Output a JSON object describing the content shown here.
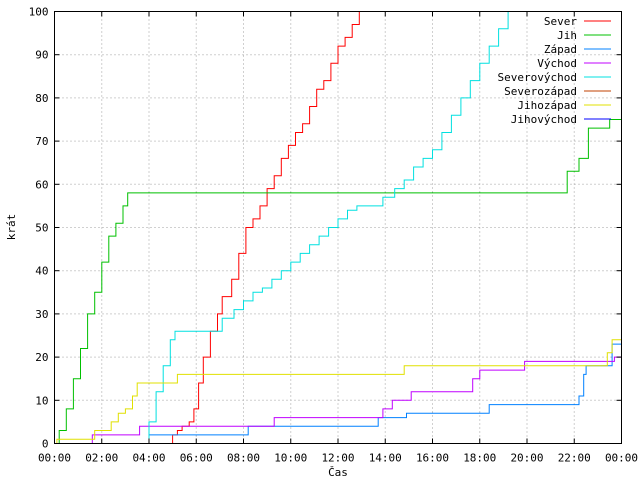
{
  "chart_data": {
    "type": "line",
    "title": "",
    "xlabel": "Čas",
    "ylabel": "krát",
    "xlim": [
      0,
      24
    ],
    "ylim": [
      0,
      100
    ],
    "x_ticks": [
      {
        "v": 0,
        "label": "00:00"
      },
      {
        "v": 2,
        "label": "02:00"
      },
      {
        "v": 4,
        "label": "04:00"
      },
      {
        "v": 6,
        "label": "06:00"
      },
      {
        "v": 8,
        "label": "08:00"
      },
      {
        "v": 10,
        "label": "10:00"
      },
      {
        "v": 12,
        "label": "12:00"
      },
      {
        "v": 14,
        "label": "14:00"
      },
      {
        "v": 16,
        "label": "16:00"
      },
      {
        "v": 18,
        "label": "18:00"
      },
      {
        "v": 20,
        "label": "20:00"
      },
      {
        "v": 22,
        "label": "22:00"
      },
      {
        "v": 24,
        "label": "00:00"
      }
    ],
    "y_ticks": [
      {
        "v": 0,
        "label": "0"
      },
      {
        "v": 10,
        "label": "10"
      },
      {
        "v": 20,
        "label": "20"
      },
      {
        "v": 30,
        "label": "30"
      },
      {
        "v": 40,
        "label": "40"
      },
      {
        "v": 50,
        "label": "50"
      },
      {
        "v": 60,
        "label": "60"
      },
      {
        "v": 70,
        "label": "70"
      },
      {
        "v": 80,
        "label": "80"
      },
      {
        "v": 90,
        "label": "90"
      },
      {
        "v": 100,
        "label": "100"
      }
    ],
    "grid": true,
    "legend_position": "top-right",
    "series": [
      {
        "name": "Sever",
        "color": "#ff0000",
        "points": [
          [
            0,
            0
          ],
          [
            4.9,
            0
          ],
          [
            5.0,
            2
          ],
          [
            5.2,
            3
          ],
          [
            5.4,
            4
          ],
          [
            5.7,
            5
          ],
          [
            5.9,
            8
          ],
          [
            6.1,
            14
          ],
          [
            6.3,
            20
          ],
          [
            6.6,
            26
          ],
          [
            6.9,
            30
          ],
          [
            7.1,
            34
          ],
          [
            7.5,
            38
          ],
          [
            7.8,
            44
          ],
          [
            8.1,
            50
          ],
          [
            8.4,
            52
          ],
          [
            8.7,
            55
          ],
          [
            9.0,
            59
          ],
          [
            9.3,
            62
          ],
          [
            9.6,
            66
          ],
          [
            9.9,
            69
          ],
          [
            10.2,
            72
          ],
          [
            10.5,
            74
          ],
          [
            10.8,
            78
          ],
          [
            11.1,
            82
          ],
          [
            11.4,
            84
          ],
          [
            11.7,
            88
          ],
          [
            12.0,
            92
          ],
          [
            12.3,
            94
          ],
          [
            12.6,
            97
          ],
          [
            12.9,
            100
          ]
        ]
      },
      {
        "name": "Jih",
        "color": "#00c000",
        "points": [
          [
            0,
            0
          ],
          [
            0.2,
            3
          ],
          [
            0.5,
            8
          ],
          [
            0.8,
            15
          ],
          [
            1.1,
            22
          ],
          [
            1.4,
            30
          ],
          [
            1.7,
            35
          ],
          [
            2.0,
            42
          ],
          [
            2.3,
            48
          ],
          [
            2.6,
            51
          ],
          [
            2.9,
            55
          ],
          [
            3.1,
            58
          ],
          [
            21.5,
            58
          ],
          [
            21.7,
            63
          ],
          [
            22.2,
            66
          ],
          [
            22.6,
            73
          ],
          [
            23.5,
            75
          ],
          [
            24,
            75
          ]
        ]
      },
      {
        "name": "Západ",
        "color": "#0080ff",
        "points": [
          [
            0,
            0
          ],
          [
            3.9,
            0
          ],
          [
            4.0,
            2
          ],
          [
            8.1,
            2
          ],
          [
            8.2,
            4
          ],
          [
            13.6,
            4
          ],
          [
            13.7,
            6
          ],
          [
            14.8,
            6
          ],
          [
            14.9,
            7
          ],
          [
            18.3,
            7
          ],
          [
            18.4,
            9
          ],
          [
            22.1,
            9
          ],
          [
            22.2,
            11
          ],
          [
            22.4,
            16
          ],
          [
            22.5,
            18
          ],
          [
            23.4,
            18
          ],
          [
            23.6,
            23
          ],
          [
            24,
            26
          ]
        ]
      },
      {
        "name": "Východ",
        "color": "#c000ff",
        "points": [
          [
            0,
            0
          ],
          [
            1.5,
            0
          ],
          [
            1.6,
            2
          ],
          [
            3.5,
            2
          ],
          [
            3.6,
            4
          ],
          [
            9.2,
            4
          ],
          [
            9.3,
            6
          ],
          [
            13.8,
            6
          ],
          [
            13.9,
            8
          ],
          [
            14.3,
            10
          ],
          [
            15.0,
            10
          ],
          [
            15.1,
            12
          ],
          [
            17.6,
            12
          ],
          [
            17.7,
            15
          ],
          [
            18.0,
            17
          ],
          [
            19.8,
            17
          ],
          [
            19.9,
            19
          ],
          [
            23.6,
            19
          ],
          [
            23.7,
            20
          ],
          [
            24,
            20
          ]
        ]
      },
      {
        "name": "Severovýchod",
        "color": "#00e0e0",
        "points": [
          [
            0,
            0
          ],
          [
            3.8,
            0
          ],
          [
            4.0,
            5
          ],
          [
            4.3,
            12
          ],
          [
            4.6,
            18
          ],
          [
            4.9,
            24
          ],
          [
            5.1,
            26
          ],
          [
            6.9,
            26
          ],
          [
            7.1,
            29
          ],
          [
            7.6,
            31
          ],
          [
            8.0,
            33
          ],
          [
            8.4,
            35
          ],
          [
            8.8,
            36
          ],
          [
            9.2,
            38
          ],
          [
            9.6,
            40
          ],
          [
            10.0,
            42
          ],
          [
            10.4,
            44
          ],
          [
            10.8,
            46
          ],
          [
            11.2,
            48
          ],
          [
            11.6,
            50
          ],
          [
            12.0,
            52
          ],
          [
            12.4,
            54
          ],
          [
            12.8,
            55
          ],
          [
            13.6,
            55
          ],
          [
            13.9,
            57
          ],
          [
            14.4,
            59
          ],
          [
            14.8,
            61
          ],
          [
            15.2,
            64
          ],
          [
            15.6,
            66
          ],
          [
            16.0,
            68
          ],
          [
            16.4,
            72
          ],
          [
            16.8,
            76
          ],
          [
            17.2,
            80
          ],
          [
            17.6,
            84
          ],
          [
            18.0,
            88
          ],
          [
            18.4,
            92
          ],
          [
            18.8,
            96
          ],
          [
            19.2,
            100
          ]
        ]
      },
      {
        "name": "Severozápad",
        "color": "#c04000",
        "points": []
      },
      {
        "name": "Jihozápad",
        "color": "#e0e000",
        "points": [
          [
            0,
            0
          ],
          [
            0.1,
            1
          ],
          [
            1.6,
            1
          ],
          [
            1.7,
            3
          ],
          [
            2.3,
            3
          ],
          [
            2.4,
            5
          ],
          [
            2.7,
            7
          ],
          [
            3.0,
            8
          ],
          [
            3.3,
            11
          ],
          [
            3.5,
            14
          ],
          [
            5.1,
            14
          ],
          [
            5.2,
            16
          ],
          [
            14.7,
            16
          ],
          [
            14.8,
            18
          ],
          [
            23.3,
            18
          ],
          [
            23.4,
            21
          ],
          [
            23.6,
            24
          ],
          [
            24,
            24
          ]
        ]
      },
      {
        "name": "Jihovýchod",
        "color": "#0000ff",
        "points": []
      }
    ]
  }
}
